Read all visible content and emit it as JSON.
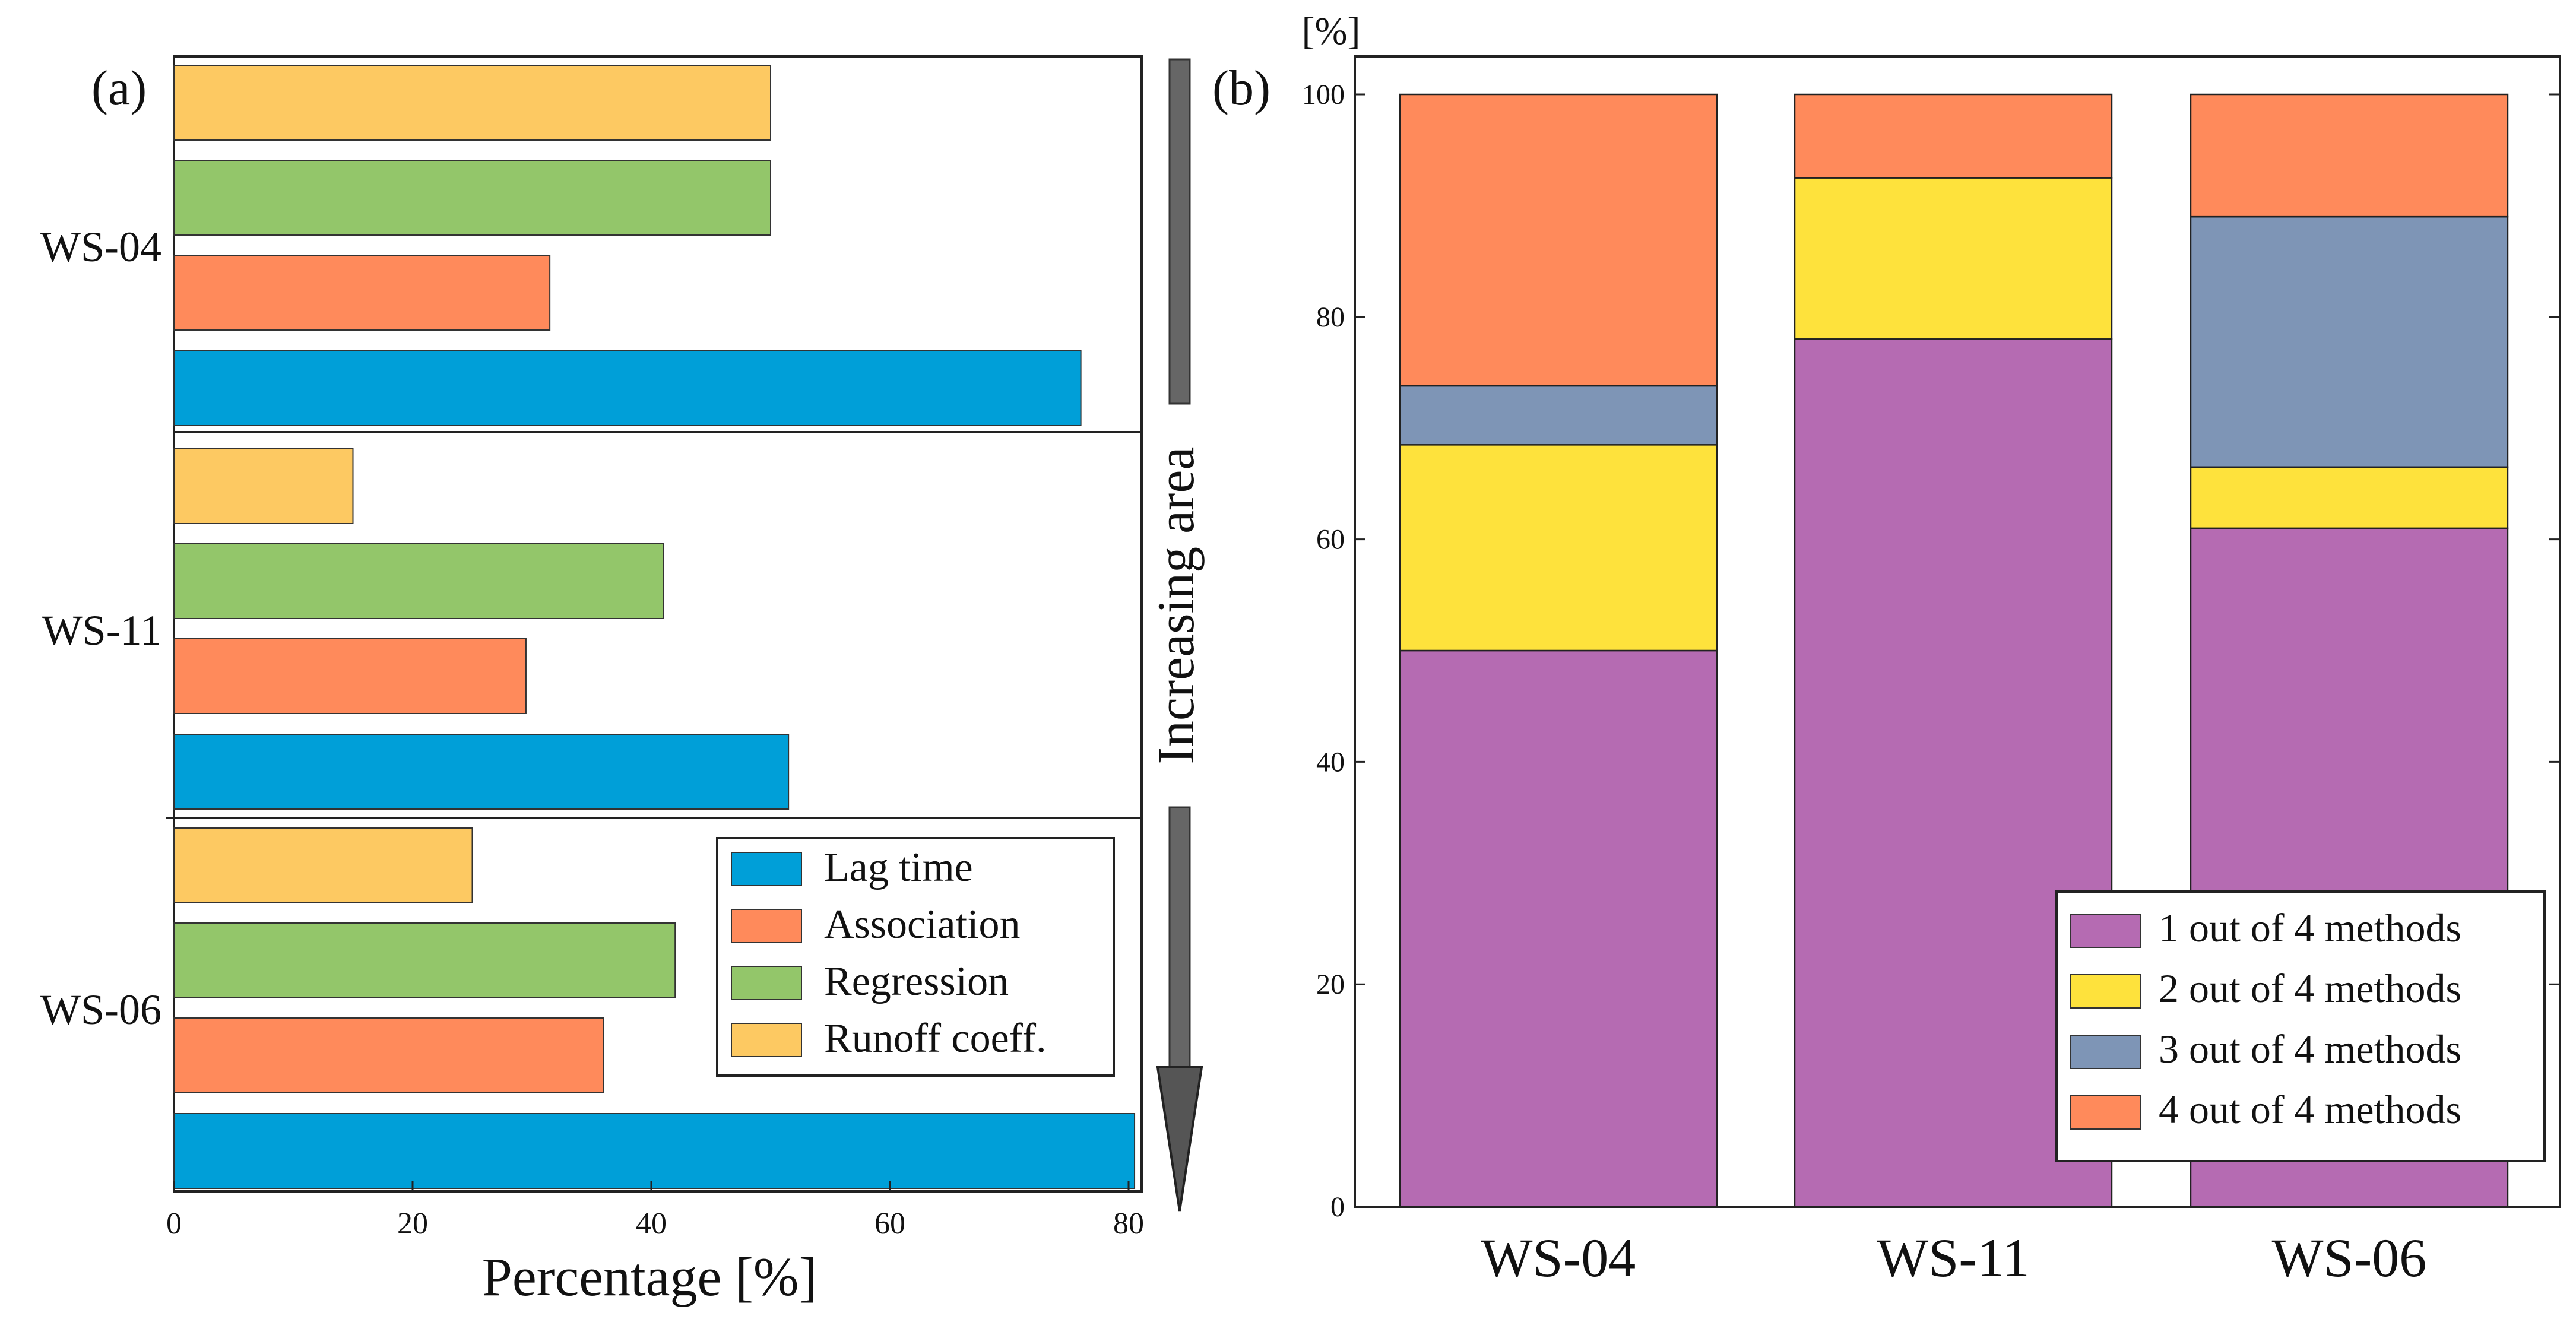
{
  "chart_data": [
    {
      "panel_label": "(a)",
      "type": "bar",
      "orientation": "horizontal",
      "groups": [
        {
          "name": "WS-04",
          "values": {
            "Runoff coeff.": 50,
            "Regression": 50,
            "Association": 31.5,
            "Lag time": 76
          }
        },
        {
          "name": "WS-11",
          "values": {
            "Runoff coeff.": 15,
            "Regression": 41,
            "Association": 29.5,
            "Lag time": 51.5
          }
        },
        {
          "name": "WS-06",
          "values": {
            "Runoff coeff.": 25,
            "Regression": 42,
            "Association": 36,
            "Lag time": 80.5
          }
        }
      ],
      "series_order_top_to_bottom": [
        "Runoff coeff.",
        "Regression",
        "Association",
        "Lag time"
      ],
      "legend": [
        {
          "name": "Lag time",
          "color": "#009fd8"
        },
        {
          "name": "Association",
          "color": "#ff8a5b"
        },
        {
          "name": "Regression",
          "color": "#93c66a"
        },
        {
          "name": "Runoff coeff.",
          "color": "#fdc962"
        }
      ],
      "legend_position": "bottom-right",
      "xlabel": "Percentage [%]",
      "xlim": [
        0,
        83
      ],
      "xticks": [
        "0",
        "20",
        "40",
        "60",
        "80"
      ],
      "arrow_label": "Increasing area"
    },
    {
      "panel_label": "(b)",
      "type": "bar",
      "stacked": true,
      "categories": [
        "WS-04",
        "WS-11",
        "WS-06"
      ],
      "series": [
        {
          "name": "1 out of 4 methods",
          "color": "#b56bb2",
          "values": [
            50,
            78,
            61
          ]
        },
        {
          "name": "2 out of 4 methods",
          "color": "#fee23c",
          "values": [
            18.5,
            14.5,
            5.5
          ]
        },
        {
          "name": "3 out of 4 methods",
          "color": "#7e95b6",
          "values": [
            5.3,
            0,
            22.5
          ]
        },
        {
          "name": "4 out of 4 methods",
          "color": "#ff8a5b",
          "values": [
            26.2,
            7.5,
            11
          ]
        }
      ],
      "legend_position": "bottom-right",
      "ylabel": "[%]",
      "ylim": [
        0,
        100
      ],
      "yticks": [
        "0",
        "20",
        "40",
        "60",
        "80",
        "100"
      ]
    }
  ]
}
